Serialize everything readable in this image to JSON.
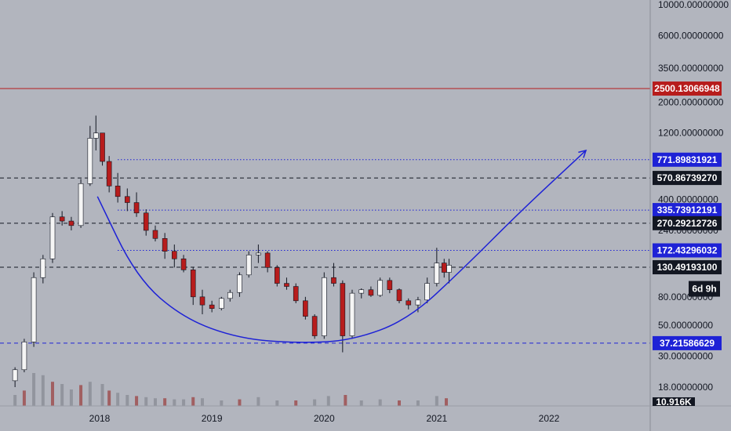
{
  "chart_data": {
    "type": "candlestick",
    "y_scale": "log",
    "ylim": [
      14,
      11000
    ],
    "xlim": [
      "2017-03-01",
      "2022-12-01"
    ],
    "price_ticks": [
      "10000.00000000",
      "6000.00000000",
      "3500.00000000",
      "2000.00000000",
      "1200.00000000",
      "400.00000000",
      "240.00000000",
      "80.00000000",
      "50.00000000",
      "30.00000000",
      "18.00000000"
    ],
    "date_ticks": [
      {
        "label": "2018",
        "date": "2018-01-01"
      },
      {
        "label": "2019",
        "date": "2019-01-01"
      },
      {
        "label": "2020",
        "date": "2020-01-01"
      },
      {
        "label": "2021",
        "date": "2021-01-01"
      },
      {
        "label": "2022",
        "date": "2022-01-01"
      }
    ],
    "levels": [
      {
        "label": "2500.13066948",
        "value": 2500.13066948,
        "style": "solid",
        "color": "#b71c1c",
        "tag_bg": "#b71c1c",
        "tag_fg": "#ffffff"
      },
      {
        "label": "771.89831921",
        "value": 771.89831921,
        "style": "dotted",
        "color": "#1e22d6",
        "tag_bg": "#1e22d6",
        "tag_fg": "#ffffff"
      },
      {
        "label": "570.86739270",
        "value": 570.8673927,
        "style": "dashed",
        "color": "#131722",
        "tag_bg": "#131722",
        "tag_fg": "#ffffff"
      },
      {
        "label": "335.73912191",
        "value": 335.73912191,
        "style": "dotted",
        "color": "#1e22d6",
        "tag_bg": "#1e22d6",
        "tag_fg": "#ffffff"
      },
      {
        "label": "270.29212726",
        "value": 270.29212726,
        "style": "dashed",
        "color": "#131722",
        "tag_bg": "#131722",
        "tag_fg": "#ffffff"
      },
      {
        "label": "172.43296032",
        "value": 172.43296032,
        "style": "dotted",
        "color": "#1e22d6",
        "tag_bg": "#1e22d6",
        "tag_fg": "#ffffff"
      },
      {
        "label": "130.49193100",
        "value": 130.491931,
        "style": "dashed",
        "color": "#131722",
        "tag_bg": "#131722",
        "tag_fg": "#ffffff"
      },
      {
        "label": "37.21586629",
        "value": 37.21586629,
        "style": "dashed",
        "color": "#1e22d6",
        "tag_bg": "#1e22d6",
        "tag_fg": "#ffffff"
      }
    ],
    "countdown": "6d 9h",
    "volume_tag": "10.916K",
    "cup_curve": {
      "color": "#1e22d6",
      "points": [
        [
          "2017-12-25",
          420
        ],
        [
          "2018-05-01",
          110
        ],
        [
          "2018-10-01",
          56
        ],
        [
          "2019-04-01",
          40
        ],
        [
          "2019-10-15",
          37.2
        ],
        [
          "2020-04-01",
          39
        ],
        [
          "2020-10-01",
          55
        ],
        [
          "2021-04-01",
          130
        ],
        [
          "2021-10-01",
          330
        ],
        [
          "2022-05-01",
          900
        ]
      ]
    },
    "colors": {
      "up": "#f5f5f5",
      "down": "#b71c1c",
      "wick": "#131722",
      "volume_up": "#8a8d96",
      "volume_down": "#9c4a4a"
    },
    "ohlc_weekly": [
      [
        "2017-04-01",
        20,
        25,
        18,
        24
      ],
      [
        "2017-05-01",
        24,
        40,
        23,
        38
      ],
      [
        "2017-06-01",
        38,
        120,
        35,
        110
      ],
      [
        "2017-07-01",
        110,
        160,
        100,
        150
      ],
      [
        "2017-08-01",
        150,
        320,
        140,
        300
      ],
      [
        "2017-09-01",
        300,
        330,
        260,
        280
      ],
      [
        "2017-10-01",
        280,
        300,
        240,
        260
      ],
      [
        "2017-11-01",
        260,
        560,
        250,
        520
      ],
      [
        "2017-12-01",
        520,
        1350,
        500,
        1100
      ],
      [
        "2017-12-20",
        1100,
        1600,
        900,
        1200
      ],
      [
        "2018-01-10",
        1200,
        1200,
        700,
        750
      ],
      [
        "2018-02-01",
        750,
        820,
        450,
        500
      ],
      [
        "2018-03-01",
        500,
        620,
        380,
        420
      ],
      [
        "2018-04-01",
        420,
        480,
        330,
        380
      ],
      [
        "2018-05-01",
        380,
        450,
        300,
        320
      ],
      [
        "2018-06-01",
        320,
        340,
        220,
        240
      ],
      [
        "2018-07-01",
        240,
        260,
        200,
        210
      ],
      [
        "2018-08-01",
        210,
        230,
        150,
        170
      ],
      [
        "2018-09-01",
        170,
        190,
        130,
        150
      ],
      [
        "2018-10-01",
        150,
        160,
        120,
        125
      ],
      [
        "2018-11-01",
        125,
        130,
        70,
        80
      ],
      [
        "2018-12-01",
        80,
        90,
        60,
        70
      ],
      [
        "2019-01-01",
        70,
        75,
        62,
        66
      ],
      [
        "2019-02-01",
        66,
        80,
        64,
        78
      ],
      [
        "2019-03-01",
        78,
        90,
        74,
        86
      ],
      [
        "2019-04-01",
        86,
        120,
        80,
        115
      ],
      [
        "2019-05-01",
        115,
        170,
        110,
        160
      ],
      [
        "2019-06-01",
        160,
        190,
        140,
        165
      ],
      [
        "2019-07-01",
        165,
        170,
        120,
        130
      ],
      [
        "2019-08-01",
        130,
        135,
        95,
        100
      ],
      [
        "2019-09-01",
        100,
        110,
        90,
        95
      ],
      [
        "2019-10-01",
        95,
        100,
        72,
        75
      ],
      [
        "2019-11-01",
        75,
        80,
        55,
        58
      ],
      [
        "2019-12-01",
        58,
        60,
        40,
        42
      ],
      [
        "2020-01-01",
        42,
        120,
        40,
        110
      ],
      [
        "2020-02-01",
        110,
        140,
        95,
        100
      ],
      [
        "2020-03-01",
        100,
        105,
        32,
        42
      ],
      [
        "2020-04-01",
        42,
        90,
        40,
        85
      ],
      [
        "2020-05-01",
        85,
        92,
        78,
        90
      ],
      [
        "2020-06-01",
        90,
        95,
        80,
        82
      ],
      [
        "2020-07-01",
        82,
        110,
        80,
        105
      ],
      [
        "2020-08-01",
        105,
        110,
        85,
        90
      ],
      [
        "2020-09-01",
        90,
        92,
        72,
        75
      ],
      [
        "2020-10-01",
        75,
        78,
        65,
        70
      ],
      [
        "2020-11-01",
        70,
        80,
        62,
        76
      ],
      [
        "2020-12-01",
        76,
        110,
        72,
        100
      ],
      [
        "2021-01-01",
        100,
        180,
        95,
        140
      ],
      [
        "2021-01-25",
        140,
        150,
        110,
        120
      ],
      [
        "2021-02-10",
        120,
        150,
        100,
        135
      ]
    ],
    "volume": [
      [
        "2017-04-01",
        1.0
      ],
      [
        "2017-05-01",
        1.4
      ],
      [
        "2017-06-01",
        3.0
      ],
      [
        "2017-07-01",
        2.8
      ],
      [
        "2017-08-01",
        2.2
      ],
      [
        "2017-09-01",
        2.0
      ],
      [
        "2017-10-01",
        1.5
      ],
      [
        "2017-11-01",
        1.9
      ],
      [
        "2017-12-01",
        2.2
      ],
      [
        "2018-01-10",
        2.0
      ],
      [
        "2018-02-01",
        1.4
      ],
      [
        "2018-03-01",
        1.2
      ],
      [
        "2018-04-01",
        1.0
      ],
      [
        "2018-05-01",
        0.9
      ],
      [
        "2018-06-01",
        0.8
      ],
      [
        "2018-07-01",
        0.7
      ],
      [
        "2018-08-01",
        0.7
      ],
      [
        "2018-09-01",
        0.6
      ],
      [
        "2018-10-01",
        0.6
      ],
      [
        "2018-11-01",
        0.8
      ],
      [
        "2018-12-01",
        0.7
      ],
      [
        "2019-02-01",
        0.5
      ],
      [
        "2019-04-01",
        0.6
      ],
      [
        "2019-06-01",
        0.8
      ],
      [
        "2019-08-01",
        0.5
      ],
      [
        "2019-10-01",
        0.5
      ],
      [
        "2019-12-01",
        0.6
      ],
      [
        "2020-01-15",
        0.9
      ],
      [
        "2020-03-10",
        1.0
      ],
      [
        "2020-05-01",
        0.5
      ],
      [
        "2020-07-01",
        0.6
      ],
      [
        "2020-09-01",
        0.5
      ],
      [
        "2020-11-01",
        0.5
      ],
      [
        "2021-01-01",
        0.9
      ],
      [
        "2021-02-01",
        0.7
      ]
    ]
  }
}
